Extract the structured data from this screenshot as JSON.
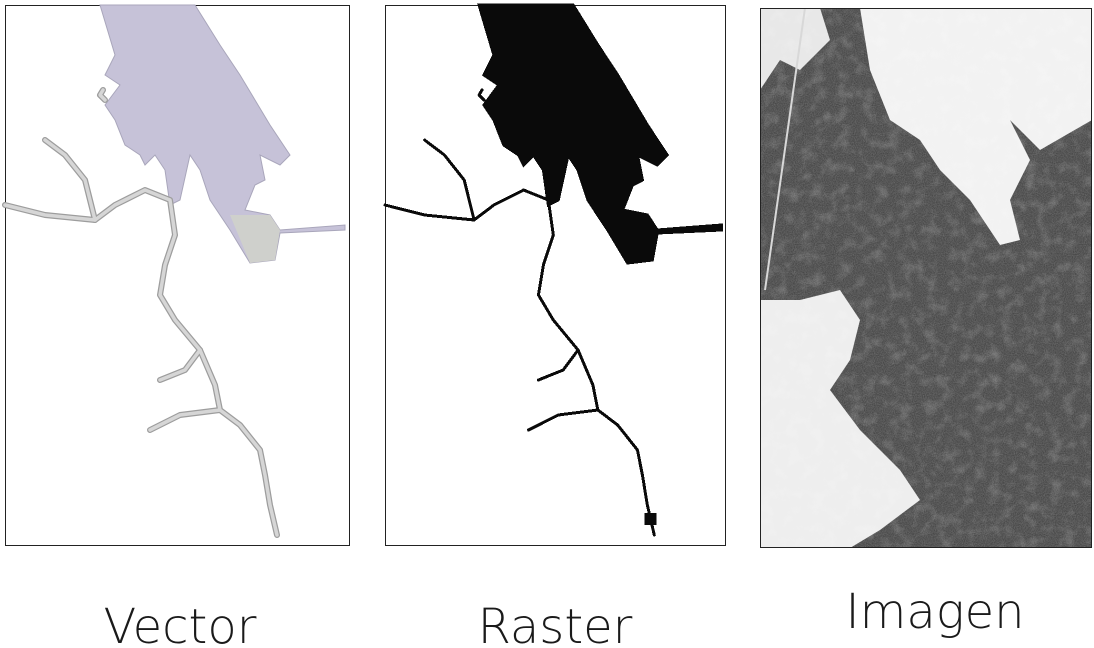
{
  "panels": [
    {
      "label": "Vector"
    },
    {
      "label": "Raster"
    },
    {
      "label": "Imagen"
    }
  ]
}
